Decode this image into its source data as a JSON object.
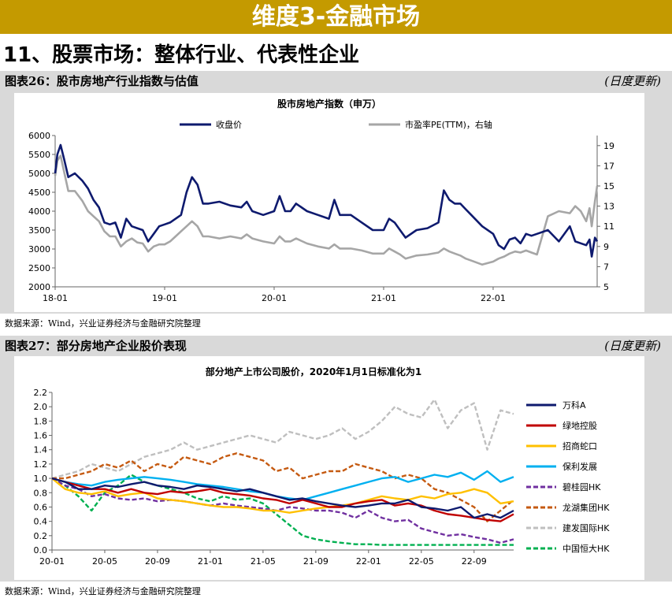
{
  "banner": {
    "title": "维度3-金融市场"
  },
  "section": {
    "title": "11、股票市场：整体行业、代表性企业"
  },
  "colors": {
    "banner": "#c49a00",
    "panel": "#d9d9d9",
    "navy": "#0e1a6e",
    "gray": "#a6a6a6"
  },
  "fig26": {
    "caption": "图表26：股市房地产行业指数与估值",
    "frequency": "(日度更新)",
    "source": "数据来源：Wind，兴业证券经济与金融研究院整理"
  },
  "fig27": {
    "caption": "图表27：部分房地产企业股价表现",
    "frequency": "(日度更新)",
    "source": "数据来源：Wind，兴业证券经济与金融研究院整理"
  },
  "chart_data": [
    {
      "type": "line",
      "title": "股市房地产指数（申万）",
      "x_ticks": [
        "18-01",
        "19-01",
        "20-01",
        "21-01",
        "22-01"
      ],
      "x_range": [
        2018.0,
        2022.95
      ],
      "left_axis": {
        "ticks": [
          2000,
          2500,
          3000,
          3500,
          4000,
          4500,
          5000,
          5500,
          6000
        ],
        "ylim": [
          2000,
          6000
        ]
      },
      "right_axis": {
        "ticks": [
          5,
          7,
          9,
          11,
          13,
          15,
          17,
          19
        ],
        "ylim": [
          5,
          20
        ]
      },
      "series": [
        {
          "name": "收盘价",
          "axis": "left",
          "color": "#0e1a6e",
          "x": [
            2018.0,
            2018.02,
            2018.05,
            2018.08,
            2018.12,
            2018.18,
            2018.25,
            2018.3,
            2018.35,
            2018.4,
            2018.45,
            2018.5,
            2018.55,
            2018.6,
            2018.65,
            2018.7,
            2018.75,
            2018.8,
            2018.85,
            2018.9,
            2018.95,
            2019.0,
            2019.05,
            2019.1,
            2019.15,
            2019.2,
            2019.25,
            2019.3,
            2019.35,
            2019.4,
            2019.5,
            2019.6,
            2019.7,
            2019.75,
            2019.8,
            2019.9,
            2020.0,
            2020.05,
            2020.1,
            2020.15,
            2020.2,
            2020.3,
            2020.4,
            2020.5,
            2020.55,
            2020.6,
            2020.7,
            2020.8,
            2020.9,
            2021.0,
            2021.05,
            2021.1,
            2021.15,
            2021.2,
            2021.3,
            2021.4,
            2021.5,
            2021.55,
            2021.6,
            2021.65,
            2021.7,
            2021.75,
            2021.8,
            2021.9,
            2022.0,
            2022.05,
            2022.1,
            2022.15,
            2022.2,
            2022.25,
            2022.3,
            2022.35,
            2022.4,
            2022.5,
            2022.6,
            2022.7,
            2022.75,
            2022.8,
            2022.85,
            2022.88,
            2022.9,
            2022.93,
            2022.95
          ],
          "y": [
            5000,
            5500,
            5750,
            5400,
            4900,
            5000,
            4800,
            4600,
            4300,
            4100,
            3700,
            3650,
            3700,
            3300,
            3800,
            3600,
            3550,
            3500,
            3200,
            3400,
            3600,
            3650,
            3700,
            3800,
            3900,
            4500,
            4900,
            4700,
            4200,
            4200,
            4250,
            4150,
            4100,
            4250,
            4000,
            3900,
            4000,
            4400,
            4000,
            4000,
            4200,
            4000,
            3900,
            3800,
            4300,
            3900,
            3900,
            3700,
            3500,
            3500,
            3800,
            3700,
            3500,
            3300,
            3500,
            3550,
            3700,
            4550,
            4300,
            4200,
            4200,
            4050,
            3900,
            3600,
            3400,
            3100,
            3000,
            3250,
            3300,
            3150,
            3400,
            3350,
            3400,
            3500,
            3200,
            3600,
            3200,
            3150,
            3100,
            3250,
            2800,
            3300,
            3200
          ]
        },
        {
          "name": "市盈率PE(TTM)，右轴",
          "axis": "right",
          "color": "#a6a6a6",
          "x": [
            2018.0,
            2018.02,
            2018.05,
            2018.08,
            2018.12,
            2018.18,
            2018.25,
            2018.3,
            2018.35,
            2018.4,
            2018.45,
            2018.5,
            2018.55,
            2018.6,
            2018.65,
            2018.7,
            2018.75,
            2018.8,
            2018.85,
            2018.9,
            2018.95,
            2019.0,
            2019.05,
            2019.1,
            2019.15,
            2019.2,
            2019.25,
            2019.3,
            2019.35,
            2019.4,
            2019.5,
            2019.6,
            2019.7,
            2019.75,
            2019.8,
            2019.9,
            2020.0,
            2020.05,
            2020.1,
            2020.15,
            2020.2,
            2020.3,
            2020.4,
            2020.5,
            2020.55,
            2020.6,
            2020.7,
            2020.8,
            2020.9,
            2021.0,
            2021.05,
            2021.1,
            2021.15,
            2021.2,
            2021.3,
            2021.4,
            2021.5,
            2021.55,
            2021.6,
            2021.65,
            2021.7,
            2021.75,
            2021.8,
            2021.9,
            2022.0,
            2022.05,
            2022.1,
            2022.15,
            2022.2,
            2022.25,
            2022.3,
            2022.35,
            2022.4,
            2022.5,
            2022.6,
            2022.7,
            2022.75,
            2022.8,
            2022.85,
            2022.88,
            2022.9,
            2022.93,
            2022.95
          ],
          "y": [
            16,
            17.5,
            18,
            16.5,
            14.5,
            14.5,
            13.5,
            12.5,
            12,
            11.5,
            10.5,
            10,
            10,
            9,
            9.5,
            9.8,
            9.4,
            9.3,
            8.5,
            9,
            9.2,
            9.2,
            9.5,
            10,
            10.5,
            11,
            11.5,
            11,
            10,
            10,
            9.8,
            10,
            9.8,
            10.2,
            9.8,
            9.5,
            9.3,
            10,
            9.5,
            9.5,
            9.8,
            9.3,
            9,
            8.8,
            9.2,
            8.8,
            8.8,
            8.6,
            8.3,
            8.3,
            8.8,
            8.5,
            8.2,
            7.8,
            8.1,
            8.2,
            8.4,
            8.8,
            8.5,
            8.3,
            8.1,
            7.8,
            7.6,
            7.2,
            7.5,
            7.8,
            8,
            8.3,
            8.5,
            8.4,
            8.6,
            8.4,
            8.2,
            12,
            12.5,
            12.3,
            13,
            12.5,
            11.5,
            12.8,
            11,
            13.5,
            15
          ]
        }
      ]
    },
    {
      "type": "line",
      "title": "部分地产上市公司股价，2020年1月1日标准化为1",
      "x_ticks": [
        "20-01",
        "20-05",
        "20-09",
        "21-01",
        "21-05",
        "21-09",
        "22-01",
        "22-05",
        "22-09"
      ],
      "x_range": [
        0,
        35
      ],
      "y_ticks": [
        "0.0",
        "0.2",
        "0.4",
        "0.6",
        "0.8",
        "1.0",
        "1.2",
        "1.4",
        "1.6",
        "1.8",
        "2.0",
        "2.2"
      ],
      "ylim": [
        0,
        2.2
      ],
      "series": [
        {
          "name": "万科A",
          "color": "#0e1a6e",
          "dash": false,
          "x": [
            0,
            1,
            2,
            3,
            4,
            5,
            6,
            7,
            8,
            9,
            10,
            11,
            12,
            13,
            14,
            15,
            16,
            17,
            18,
            19,
            20,
            21,
            22,
            23,
            24,
            25,
            26,
            27,
            28,
            29,
            30,
            31,
            32,
            33,
            34,
            35
          ],
          "y": [
            1,
            0.95,
            0.85,
            0.85,
            0.9,
            0.88,
            0.92,
            0.95,
            0.9,
            0.88,
            0.85,
            0.9,
            0.88,
            0.85,
            0.82,
            0.85,
            0.8,
            0.75,
            0.7,
            0.72,
            0.68,
            0.65,
            0.62,
            0.6,
            0.62,
            0.65,
            0.65,
            0.7,
            0.6,
            0.58,
            0.55,
            0.6,
            0.45,
            0.5,
            0.45,
            0.55
          ]
        },
        {
          "name": "绿地控股",
          "color": "#c00000",
          "dash": false,
          "x": [
            0,
            1,
            2,
            3,
            4,
            5,
            6,
            7,
            8,
            9,
            10,
            11,
            12,
            13,
            14,
            15,
            16,
            17,
            18,
            19,
            20,
            21,
            22,
            23,
            24,
            25,
            26,
            27,
            28,
            29,
            30,
            31,
            32,
            33,
            34,
            35
          ],
          "y": [
            1,
            0.95,
            0.9,
            0.85,
            0.85,
            0.8,
            0.85,
            0.8,
            0.78,
            0.82,
            0.8,
            0.82,
            0.85,
            0.8,
            0.78,
            0.76,
            0.72,
            0.7,
            0.65,
            0.7,
            0.65,
            0.6,
            0.6,
            0.65,
            0.68,
            0.7,
            0.62,
            0.65,
            0.62,
            0.55,
            0.5,
            0.48,
            0.45,
            0.42,
            0.4,
            0.5
          ]
        },
        {
          "name": "招商蛇口",
          "color": "#ffc000",
          "dash": false,
          "x": [
            0,
            1,
            2,
            3,
            4,
            5,
            6,
            7,
            8,
            9,
            10,
            11,
            12,
            13,
            14,
            15,
            16,
            17,
            18,
            19,
            20,
            21,
            22,
            23,
            24,
            25,
            26,
            27,
            28,
            29,
            30,
            31,
            32,
            33,
            34,
            35
          ],
          "y": [
            1,
            0.85,
            0.8,
            0.78,
            0.82,
            0.75,
            0.78,
            0.8,
            0.72,
            0.7,
            0.68,
            0.65,
            0.62,
            0.6,
            0.6,
            0.58,
            0.55,
            0.55,
            0.52,
            0.55,
            0.58,
            0.6,
            0.62,
            0.65,
            0.7,
            0.75,
            0.72,
            0.7,
            0.75,
            0.72,
            0.78,
            0.8,
            0.85,
            0.8,
            0.65,
            0.68
          ]
        },
        {
          "name": "保利发展",
          "color": "#00b0f0",
          "dash": false,
          "x": [
            0,
            1,
            2,
            3,
            4,
            5,
            6,
            7,
            8,
            9,
            10,
            11,
            12,
            13,
            14,
            15,
            16,
            17,
            18,
            19,
            20,
            21,
            22,
            23,
            24,
            25,
            26,
            27,
            28,
            29,
            30,
            31,
            32,
            33,
            34,
            35
          ],
          "y": [
            1,
            0.95,
            0.92,
            0.9,
            0.95,
            0.98,
            1,
            1.02,
            1,
            0.98,
            0.95,
            0.92,
            0.9,
            0.88,
            0.85,
            0.82,
            0.8,
            0.75,
            0.72,
            0.7,
            0.75,
            0.8,
            0.85,
            0.9,
            0.95,
            1,
            1.02,
            0.95,
            1,
            1.05,
            1.02,
            1.08,
            0.98,
            1.1,
            0.95,
            1.02
          ]
        },
        {
          "name": "碧桂园HK",
          "color": "#7030a0",
          "dash": true,
          "x": [
            0,
            1,
            2,
            3,
            4,
            5,
            6,
            7,
            8,
            9,
            10,
            11,
            12,
            13,
            14,
            15,
            16,
            17,
            18,
            19,
            20,
            21,
            22,
            23,
            24,
            25,
            26,
            27,
            28,
            29,
            30,
            31,
            32,
            33,
            34,
            35
          ],
          "y": [
            1,
            0.9,
            0.85,
            0.75,
            0.78,
            0.72,
            0.7,
            0.72,
            0.68,
            0.7,
            0.68,
            0.65,
            0.62,
            0.65,
            0.62,
            0.6,
            0.58,
            0.55,
            0.6,
            0.58,
            0.55,
            0.55,
            0.52,
            0.45,
            0.55,
            0.45,
            0.4,
            0.42,
            0.3,
            0.25,
            0.2,
            0.22,
            0.18,
            0.15,
            0.1,
            0.15
          ]
        },
        {
          "name": "龙湖集团HK",
          "color": "#c55a11",
          "dash": true,
          "x": [
            0,
            1,
            2,
            3,
            4,
            5,
            6,
            7,
            8,
            9,
            10,
            11,
            12,
            13,
            14,
            15,
            16,
            17,
            18,
            19,
            20,
            21,
            22,
            23,
            24,
            25,
            26,
            27,
            28,
            29,
            30,
            31,
            32,
            33,
            34,
            35
          ],
          "y": [
            1,
            1,
            1.05,
            1.1,
            1.2,
            1.15,
            1.25,
            1.1,
            1.2,
            1.15,
            1.3,
            1.25,
            1.2,
            1.3,
            1.35,
            1.3,
            1.25,
            1.1,
            1.15,
            1.0,
            1.05,
            1.1,
            1.1,
            1.2,
            1.15,
            1.1,
            1.0,
            1.05,
            1.0,
            0.85,
            0.8,
            0.7,
            0.6,
            0.4,
            0.55,
            0.7
          ]
        },
        {
          "name": "建发国际HK",
          "color": "#bfbfbf",
          "dash": true,
          "x": [
            0,
            1,
            2,
            3,
            4,
            5,
            6,
            7,
            8,
            9,
            10,
            11,
            12,
            13,
            14,
            15,
            16,
            17,
            18,
            19,
            20,
            21,
            22,
            23,
            24,
            25,
            26,
            27,
            28,
            29,
            30,
            31,
            32,
            33,
            34,
            35
          ],
          "y": [
            1,
            1.05,
            1.1,
            1.2,
            1.15,
            1.1,
            1.2,
            1.3,
            1.35,
            1.4,
            1.5,
            1.4,
            1.45,
            1.5,
            1.55,
            1.6,
            1.55,
            1.5,
            1.65,
            1.6,
            1.55,
            1.6,
            1.7,
            1.55,
            1.65,
            1.8,
            2.0,
            1.9,
            1.85,
            2.1,
            1.7,
            1.95,
            2.05,
            1.4,
            1.95,
            1.9
          ]
        },
        {
          "name": "中国恒大HK",
          "color": "#00b050",
          "dash": true,
          "x": [
            0,
            1,
            2,
            3,
            4,
            5,
            6,
            7,
            8,
            9,
            10,
            11,
            12,
            13,
            14,
            15,
            16,
            17,
            18,
            19,
            20,
            21,
            22,
            23,
            24,
            25,
            26,
            27,
            28,
            29,
            30,
            31,
            32,
            33,
            34,
            35
          ],
          "y": [
            1,
            0.9,
            0.75,
            0.55,
            0.8,
            0.9,
            1.05,
            0.95,
            0.9,
            0.85,
            0.8,
            0.72,
            0.68,
            0.75,
            0.7,
            0.72,
            0.65,
            0.5,
            0.35,
            0.2,
            0.15,
            0.12,
            0.1,
            0.08,
            0.08,
            0.07,
            0.07,
            0.07,
            0.07,
            0.07,
            0.07,
            0.07,
            0.07,
            0.07,
            0.07,
            0.07
          ]
        }
      ]
    }
  ]
}
